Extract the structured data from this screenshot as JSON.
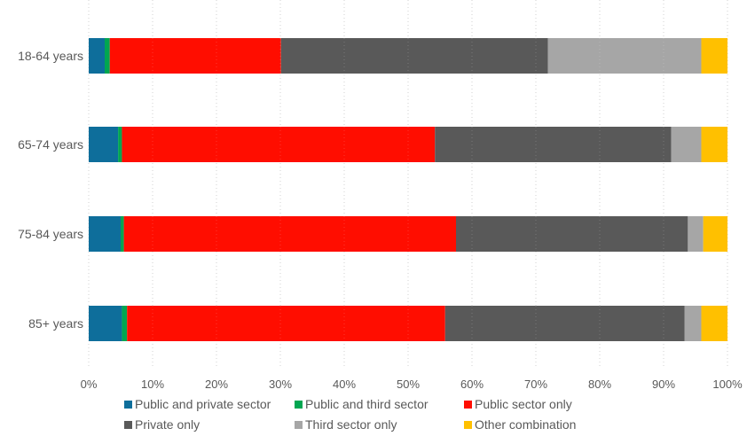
{
  "chart_data": {
    "type": "bar",
    "orientation": "horizontal",
    "stacked": true,
    "categories": [
      "18-64 years",
      "65-74 years",
      "75-84 years",
      "85+ years"
    ],
    "xlim": [
      0,
      100
    ],
    "x_ticks": [
      "0%",
      "10%",
      "20%",
      "30%",
      "40%",
      "50%",
      "60%",
      "70%",
      "80%",
      "90%",
      "100%"
    ],
    "grid": true,
    "legend_position": "bottom",
    "series": [
      {
        "name": "Public and private sector",
        "color": "#0E6E9B",
        "values": [
          2.5,
          4.6,
          5.0,
          5.2
        ]
      },
      {
        "name": "Public and third sector",
        "color": "#00A651",
        "values": [
          0.8,
          0.6,
          0.5,
          0.8
        ]
      },
      {
        "name": "Public sector only",
        "color": "#FF0D00",
        "values": [
          26.8,
          49.0,
          52.0,
          49.8
        ]
      },
      {
        "name": "Private only",
        "color": "#595959",
        "values": [
          41.8,
          37.0,
          36.3,
          37.5
        ]
      },
      {
        "name": "Third sector only",
        "color": "#A6A6A6",
        "values": [
          24.0,
          4.7,
          2.4,
          2.6
        ]
      },
      {
        "name": "Other combination",
        "color": "#FFC000",
        "values": [
          4.1,
          4.1,
          3.8,
          4.1
        ]
      }
    ]
  }
}
